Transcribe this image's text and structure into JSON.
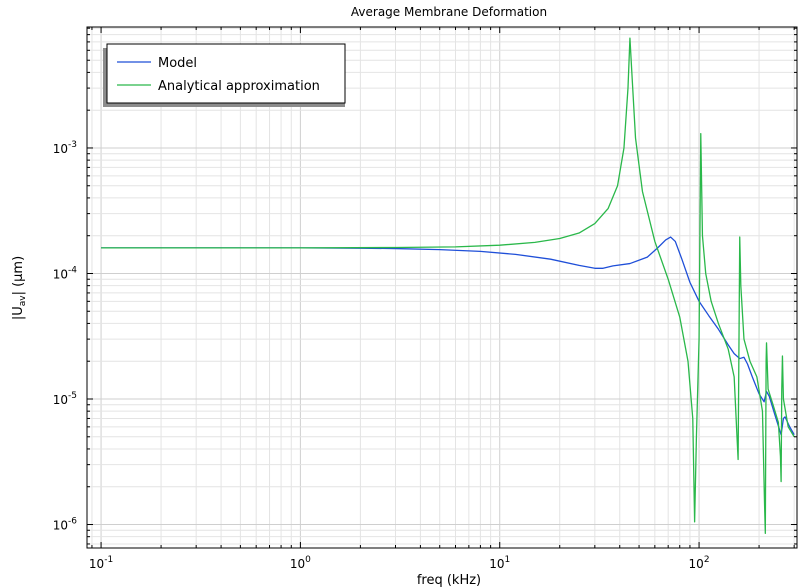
{
  "chart_data": {
    "type": "line",
    "title": "Average Membrane Deformation",
    "xlabel": "freq (kHz)",
    "ylabel": {
      "main": "|U",
      "sub": "av",
      "unit": "| (µm)"
    },
    "x_scale": "log",
    "y_scale": "log",
    "xlim": [
      0.085,
      310
    ],
    "ylim": [
      6.5e-07,
      0.0092
    ],
    "grid": true,
    "legend_position": "top-left",
    "x_ticks": [
      {
        "base": "10",
        "exp": "-1",
        "value": 0.1
      },
      {
        "base": "10",
        "exp": "0",
        "value": 1
      },
      {
        "base": "10",
        "exp": "1",
        "value": 10
      },
      {
        "base": "10",
        "exp": "2",
        "value": 100
      }
    ],
    "y_ticks": [
      {
        "base": "10",
        "exp": "-6",
        "value": 1e-06
      },
      {
        "base": "10",
        "exp": "-5",
        "value": 1e-05
      },
      {
        "base": "10",
        "exp": "-4",
        "value": 0.0001
      },
      {
        "base": "10",
        "exp": "-3",
        "value": 0.001
      }
    ],
    "series": [
      {
        "name": "Model",
        "color": "#1f4fd8",
        "points": [
          [
            0.1,
            0.00016
          ],
          [
            0.5,
            0.00016
          ],
          [
            1,
            0.00016
          ],
          [
            2,
            0.000159
          ],
          [
            3,
            0.000158
          ],
          [
            5,
            0.000155
          ],
          [
            8,
            0.00015
          ],
          [
            12,
            0.000142
          ],
          [
            18,
            0.00013
          ],
          [
            25,
            0.000116
          ],
          [
            30,
            0.00011
          ],
          [
            33,
            0.00011
          ],
          [
            37,
            0.000115
          ],
          [
            45,
            0.00012
          ],
          [
            55,
            0.000135
          ],
          [
            62,
            0.00016
          ],
          [
            68,
            0.000185
          ],
          [
            72,
            0.000195
          ],
          [
            76,
            0.00018
          ],
          [
            82,
            0.00013
          ],
          [
            90,
            8.5e-05
          ],
          [
            100,
            6e-05
          ],
          [
            112,
            4.6e-05
          ],
          [
            125,
            3.6e-05
          ],
          [
            140,
            2.7e-05
          ],
          [
            150,
            2.3e-05
          ],
          [
            160,
            2.1e-05
          ],
          [
            168,
            2.15e-05
          ],
          [
            175,
            1.9e-05
          ],
          [
            185,
            1.5e-05
          ],
          [
            200,
            1.1e-05
          ],
          [
            212,
            9.5e-06
          ],
          [
            218,
            1.15e-05
          ],
          [
            225,
            1.05e-05
          ],
          [
            240,
            7.5e-06
          ],
          [
            258,
            5.2e-06
          ],
          [
            265,
            7e-06
          ],
          [
            270,
            7.2e-06
          ],
          [
            285,
            6e-06
          ],
          [
            300,
            5.2e-06
          ]
        ]
      },
      {
        "name": "Analytical approximation",
        "color": "#2ab84a",
        "points": [
          [
            0.1,
            0.00016
          ],
          [
            1,
            0.00016
          ],
          [
            3,
            0.000161
          ],
          [
            6,
            0.000163
          ],
          [
            10,
            0.000168
          ],
          [
            15,
            0.000177
          ],
          [
            20,
            0.00019
          ],
          [
            25,
            0.00021
          ],
          [
            30,
            0.00025
          ],
          [
            35,
            0.00033
          ],
          [
            39,
            0.0005
          ],
          [
            42,
            0.001
          ],
          [
            44,
            0.003
          ],
          [
            45,
            0.0075
          ],
          [
            46,
            0.004
          ],
          [
            48,
            0.0012
          ],
          [
            52,
            0.00045
          ],
          [
            60,
            0.00018
          ],
          [
            70,
            9e-05
          ],
          [
            80,
            4.5e-05
          ],
          [
            88,
            2e-05
          ],
          [
            93,
            7e-06
          ],
          [
            95,
            1.05e-06
          ],
          [
            97,
            5e-06
          ],
          [
            100,
            3e-05
          ],
          [
            102,
            0.0013
          ],
          [
            104,
            0.0002
          ],
          [
            108,
            0.0001
          ],
          [
            115,
            6e-05
          ],
          [
            125,
            4e-05
          ],
          [
            140,
            2.5e-05
          ],
          [
            150,
            1.5e-05
          ],
          [
            155,
            5e-06
          ],
          [
            157,
            3.3e-06
          ],
          [
            159,
            5e-05
          ],
          [
            160,
            0.000195
          ],
          [
            162,
            8e-05
          ],
          [
            168,
            3e-05
          ],
          [
            180,
            2e-05
          ],
          [
            195,
            1.5e-05
          ],
          [
            208,
            8e-06
          ],
          [
            213,
            1.5e-06
          ],
          [
            215,
            8.5e-07
          ],
          [
            217,
            2e-05
          ],
          [
            218,
            2.8e-05
          ],
          [
            222,
            1.2e-05
          ],
          [
            235,
            9e-06
          ],
          [
            250,
            6.5e-06
          ],
          [
            256,
            3.5e-06
          ],
          [
            258,
            2.2e-06
          ],
          [
            260,
            1.2e-05
          ],
          [
            262,
            2.2e-05
          ],
          [
            265,
            1e-05
          ],
          [
            280,
            6e-06
          ],
          [
            300,
            5e-06
          ]
        ]
      }
    ]
  }
}
